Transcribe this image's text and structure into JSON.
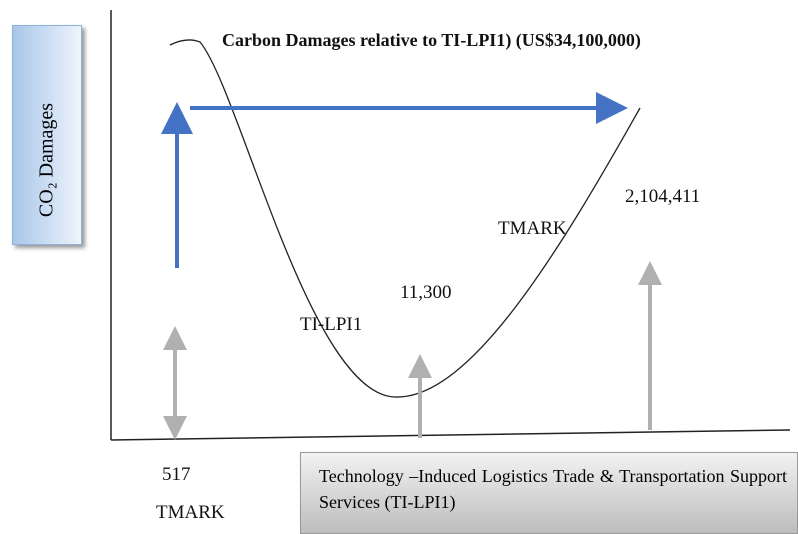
{
  "title": "Carbon Damages relative to TI-LPI1) (US$34,100,000)",
  "y_axis_label": "CO₂ Damages",
  "x_axis_label": "Technology –Induced Logistics Trade & Transportation Support Services (TI-LPI1)",
  "labels": [
    "2,104,411",
    "TMARK",
    "11,300",
    "TI-LPI1",
    "517",
    "TMARK"
  ]
}
